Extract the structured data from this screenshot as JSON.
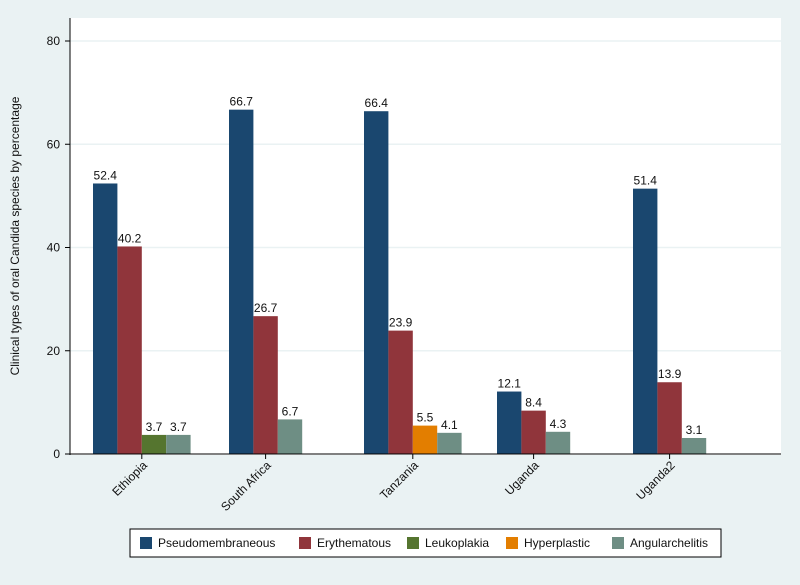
{
  "chart_data": {
    "type": "bar",
    "title": "",
    "xlabel": "",
    "ylabel": "Clinical types of oral Candida species by percentage",
    "ylim": [
      0,
      80
    ],
    "yticks": [
      0,
      20,
      40,
      60,
      80
    ],
    "grid": true,
    "legend_position": "bottom",
    "categories": [
      "Ethiopia",
      "South Africa",
      "Tanzania",
      "Uganda",
      "Uganda2"
    ],
    "series": [
      {
        "name": "Pseudomembraneous",
        "color": "#1a476f",
        "values": [
          52.4,
          66.7,
          66.4,
          12.1,
          51.4
        ]
      },
      {
        "name": "Erythematous",
        "color": "#90353b",
        "values": [
          40.2,
          26.7,
          23.9,
          8.4,
          13.9
        ]
      },
      {
        "name": "Leukoplakia",
        "color": "#55752f",
        "values": [
          3.7,
          null,
          null,
          null,
          null
        ]
      },
      {
        "name": "Hyperplastic",
        "color": "#e37e00",
        "values": [
          null,
          null,
          5.5,
          null,
          null
        ]
      },
      {
        "name": "Angularchelitis",
        "color": "#6e8e84",
        "values": [
          3.7,
          6.7,
          4.1,
          4.3,
          3.1
        ]
      }
    ]
  }
}
